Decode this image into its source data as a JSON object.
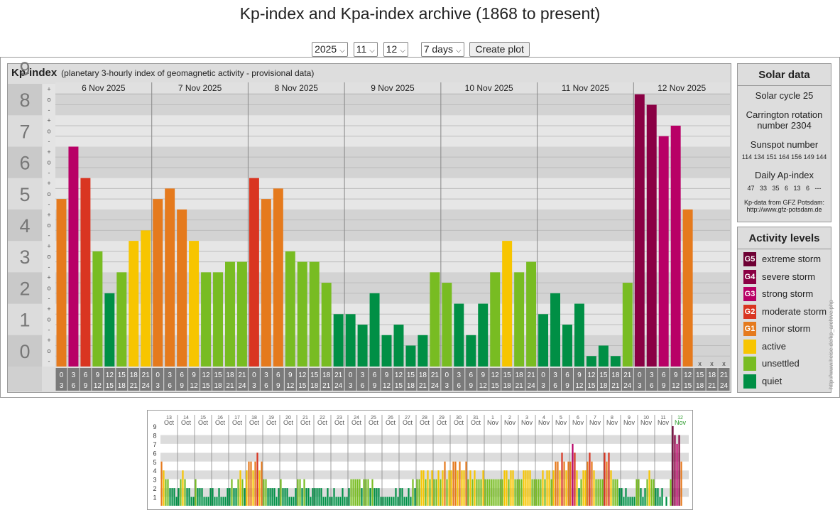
{
  "page": {
    "title": "Kp-index and Kpa-index archive (1868 to present)"
  },
  "controls": {
    "year": "2025",
    "month": "11",
    "day": "12",
    "range": "7 days",
    "create_label": "Create plot"
  },
  "panel": {
    "title": "Kp-index",
    "subtitle": "(planetary 3-hourly index of geomagnetic activity - provisional data)"
  },
  "solar": {
    "title": "Solar data",
    "cycle": "Solar cycle 25",
    "carrington_1": "Carrington rotation",
    "carrington_2": "number 2304",
    "sunspot_label": "Sunspot number",
    "sunspot_values": "114 134 151 164 156 149 144",
    "ap_label": "Daily Ap-index",
    "ap_values": "47   33   35   6   13   6   ---",
    "source_1": "Kp-data from GFZ Potsdam:",
    "source_2": "http://www.gfz-potsdam.de"
  },
  "activity": {
    "title": "Activity levels",
    "levels": [
      {
        "code": "G5",
        "label": "extreme storm",
        "color": "#6e0034"
      },
      {
        "code": "G4",
        "label": "severe storm",
        "color": "#8a0044"
      },
      {
        "code": "G3",
        "label": "strong storm",
        "color": "#b80066"
      },
      {
        "code": "G2",
        "label": "moderate storm",
        "color": "#d93521"
      },
      {
        "code": "G1",
        "label": "minor storm",
        "color": "#e57a1d"
      },
      {
        "code": "",
        "label": "active",
        "color": "#f7c500"
      },
      {
        "code": "",
        "label": "unsettled",
        "color": "#78bc22"
      },
      {
        "code": "",
        "label": "quiet",
        "color": "#008f45"
      }
    ]
  },
  "credit": "http://www.heise.de/kp_archive.php",
  "chart_data": [
    {
      "type": "bar",
      "days": [
        "6 Nov 2025",
        "7 Nov 2025",
        "8 Nov 2025",
        "9 Nov 2025",
        "10 Nov 2025",
        "11 Nov 2025",
        "12 Nov 2025"
      ],
      "interval_top": [
        "0",
        "3",
        "6",
        "9",
        "12",
        "15",
        "18",
        "21"
      ],
      "interval_bottom": [
        "3",
        "6",
        "9",
        "12",
        "15",
        "18",
        "21",
        "24"
      ],
      "y_ticks": [
        "0",
        "1",
        "2",
        "3",
        "4",
        "5",
        "6",
        "7",
        "8",
        "9"
      ],
      "sub_ticks": [
        "+",
        "o",
        "-"
      ],
      "ylim": [
        0,
        9
      ],
      "values": [
        [
          5.333,
          7.0,
          6.0,
          3.667,
          2.333,
          3.0,
          4.0,
          4.333
        ],
        [
          5.333,
          5.667,
          5.0,
          4.0,
          3.0,
          3.0,
          3.333,
          3.333
        ],
        [
          6.0,
          5.333,
          5.667,
          3.667,
          3.333,
          3.333,
          2.667,
          1.667
        ],
        [
          1.667,
          1.333,
          2.333,
          1.0,
          1.333,
          0.667,
          1.0,
          3.0
        ],
        [
          2.667,
          2.0,
          1.0,
          2.0,
          3.0,
          4.0,
          3.0,
          3.333
        ],
        [
          1.667,
          2.333,
          1.333,
          2.0,
          0.333,
          0.667,
          0.333,
          2.667
        ],
        [
          8.667,
          8.333,
          7.333,
          7.667,
          5.0,
          null,
          null,
          null
        ]
      ],
      "missing_mark": "x"
    },
    {
      "type": "bar",
      "title": "",
      "days": [
        {
          "day": "13",
          "month": "Oct"
        },
        {
          "day": "14",
          "month": "Oct"
        },
        {
          "day": "15",
          "month": "Oct"
        },
        {
          "day": "16",
          "month": "Oct"
        },
        {
          "day": "17",
          "month": "Oct"
        },
        {
          "day": "18",
          "month": "Oct"
        },
        {
          "day": "19",
          "month": "Oct"
        },
        {
          "day": "20",
          "month": "Oct"
        },
        {
          "day": "21",
          "month": "Oct"
        },
        {
          "day": "22",
          "month": "Oct"
        },
        {
          "day": "23",
          "month": "Oct"
        },
        {
          "day": "24",
          "month": "Oct"
        },
        {
          "day": "25",
          "month": "Oct"
        },
        {
          "day": "26",
          "month": "Oct"
        },
        {
          "day": "27",
          "month": "Oct"
        },
        {
          "day": "28",
          "month": "Oct"
        },
        {
          "day": "29",
          "month": "Oct"
        },
        {
          "day": "30",
          "month": "Oct"
        },
        {
          "day": "31",
          "month": "Oct"
        },
        {
          "day": "1",
          "month": "Nov"
        },
        {
          "day": "2",
          "month": "Nov"
        },
        {
          "day": "3",
          "month": "Nov"
        },
        {
          "day": "4",
          "month": "Nov"
        },
        {
          "day": "5",
          "month": "Nov"
        },
        {
          "day": "6",
          "month": "Nov"
        },
        {
          "day": "7",
          "month": "Nov"
        },
        {
          "day": "8",
          "month": "Nov"
        },
        {
          "day": "9",
          "month": "Nov"
        },
        {
          "day": "10",
          "month": "Nov"
        },
        {
          "day": "11",
          "month": "Nov"
        },
        {
          "day": "12",
          "month": "Nov"
        }
      ],
      "y_ticks": [
        "1",
        "2",
        "3",
        "4",
        "5",
        "6",
        "7",
        "8",
        "9"
      ],
      "ylim": [
        0,
        9
      ],
      "values": [
        [
          5,
          4,
          3,
          3,
          2,
          2,
          2,
          1
        ],
        [
          2,
          3,
          4,
          3,
          2,
          2,
          1,
          1
        ],
        [
          3,
          2,
          2,
          2,
          1,
          1,
          1,
          2
        ],
        [
          2,
          1,
          1,
          2,
          1,
          1,
          1,
          2
        ],
        [
          2,
          3,
          2,
          2,
          3,
          4,
          3,
          2
        ],
        [
          4,
          5,
          5,
          4,
          5,
          6,
          4,
          5
        ],
        [
          3,
          3,
          2,
          2,
          2,
          2,
          1,
          2
        ],
        [
          3,
          2,
          2,
          2,
          1,
          1,
          1,
          2
        ],
        [
          3,
          3,
          2,
          3,
          2,
          2,
          1,
          2
        ],
        [
          2,
          2,
          2,
          2,
          1,
          1,
          2,
          1
        ],
        [
          1,
          2,
          1,
          1,
          1,
          2,
          1,
          1
        ],
        [
          2,
          3,
          3,
          3,
          3,
          3,
          2,
          3
        ],
        [
          3,
          3,
          2,
          3,
          2,
          2,
          2,
          1
        ],
        [
          1,
          1,
          1,
          1,
          1,
          1,
          2,
          1
        ],
        [
          2,
          2,
          1,
          1,
          2,
          1,
          3,
          2
        ],
        [
          3,
          3,
          4,
          4,
          3,
          4,
          3,
          4
        ],
        [
          3,
          3,
          4,
          3,
          4,
          5,
          3,
          4
        ],
        [
          4,
          5,
          5,
          4,
          5,
          4,
          4,
          5
        ],
        [
          3,
          4,
          3,
          4,
          3,
          3,
          3,
          4
        ],
        [
          3,
          3,
          3,
          3,
          3,
          3,
          3,
          3
        ],
        [
          3,
          4,
          4,
          3,
          4,
          4,
          3,
          3
        ],
        [
          3,
          3,
          4,
          4,
          4,
          4,
          3,
          3
        ],
        [
          3,
          3,
          3,
          4,
          3,
          4,
          4,
          3
        ],
        [
          4,
          5,
          5,
          4,
          6,
          5,
          4,
          5
        ],
        [
          5,
          7,
          6,
          4,
          2,
          3,
          4,
          4
        ],
        [
          5,
          6,
          5,
          4,
          3,
          3,
          3,
          3
        ],
        [
          6,
          5,
          6,
          4,
          3,
          3,
          3,
          2
        ],
        [
          2,
          1,
          2,
          1,
          1,
          1,
          1,
          3
        ],
        [
          3,
          2,
          1,
          2,
          3,
          4,
          3,
          3
        ],
        [
          2,
          2,
          1,
          2,
          0,
          1,
          0,
          3
        ],
        [
          9,
          8,
          7,
          8,
          5,
          0,
          0,
          0
        ]
      ]
    }
  ]
}
